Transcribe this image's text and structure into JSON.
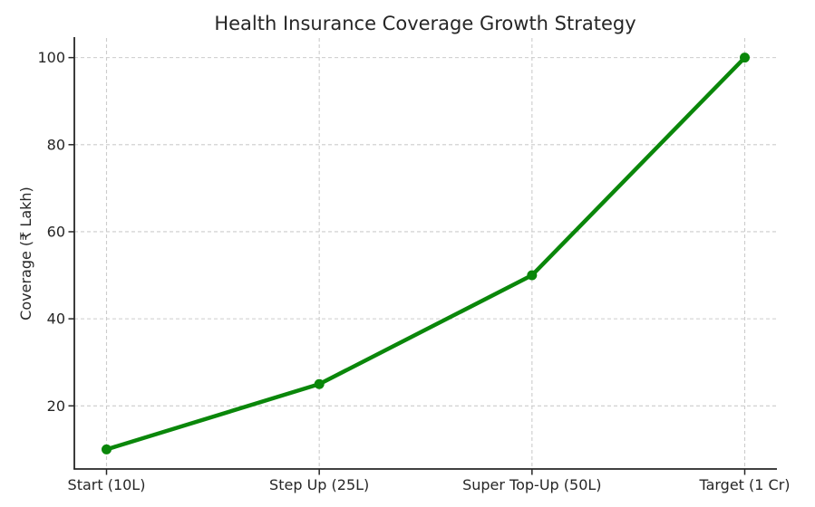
{
  "figure": {
    "background": "#ffffff"
  },
  "chart_data": {
    "type": "line",
    "title": "Health Insurance Coverage Growth Strategy",
    "categories": [
      "Start (10L)",
      "Step Up (25L)",
      "Super Top-Up (50L)",
      "Target (1 Cr)"
    ],
    "values": [
      10,
      25,
      50,
      100
    ],
    "xlabel": "",
    "ylabel": "Coverage (₹ Lakh)",
    "ylim": [
      5.5,
      104.5
    ],
    "yticks": [
      20,
      40,
      60,
      80,
      100
    ],
    "grid": true,
    "grid_style": "dashed",
    "legend_position": "none",
    "marker": "circle",
    "line_color": "#0a870a",
    "grid_color": "#cccccc",
    "axis_color": "#262626",
    "text_color": "#262626"
  }
}
